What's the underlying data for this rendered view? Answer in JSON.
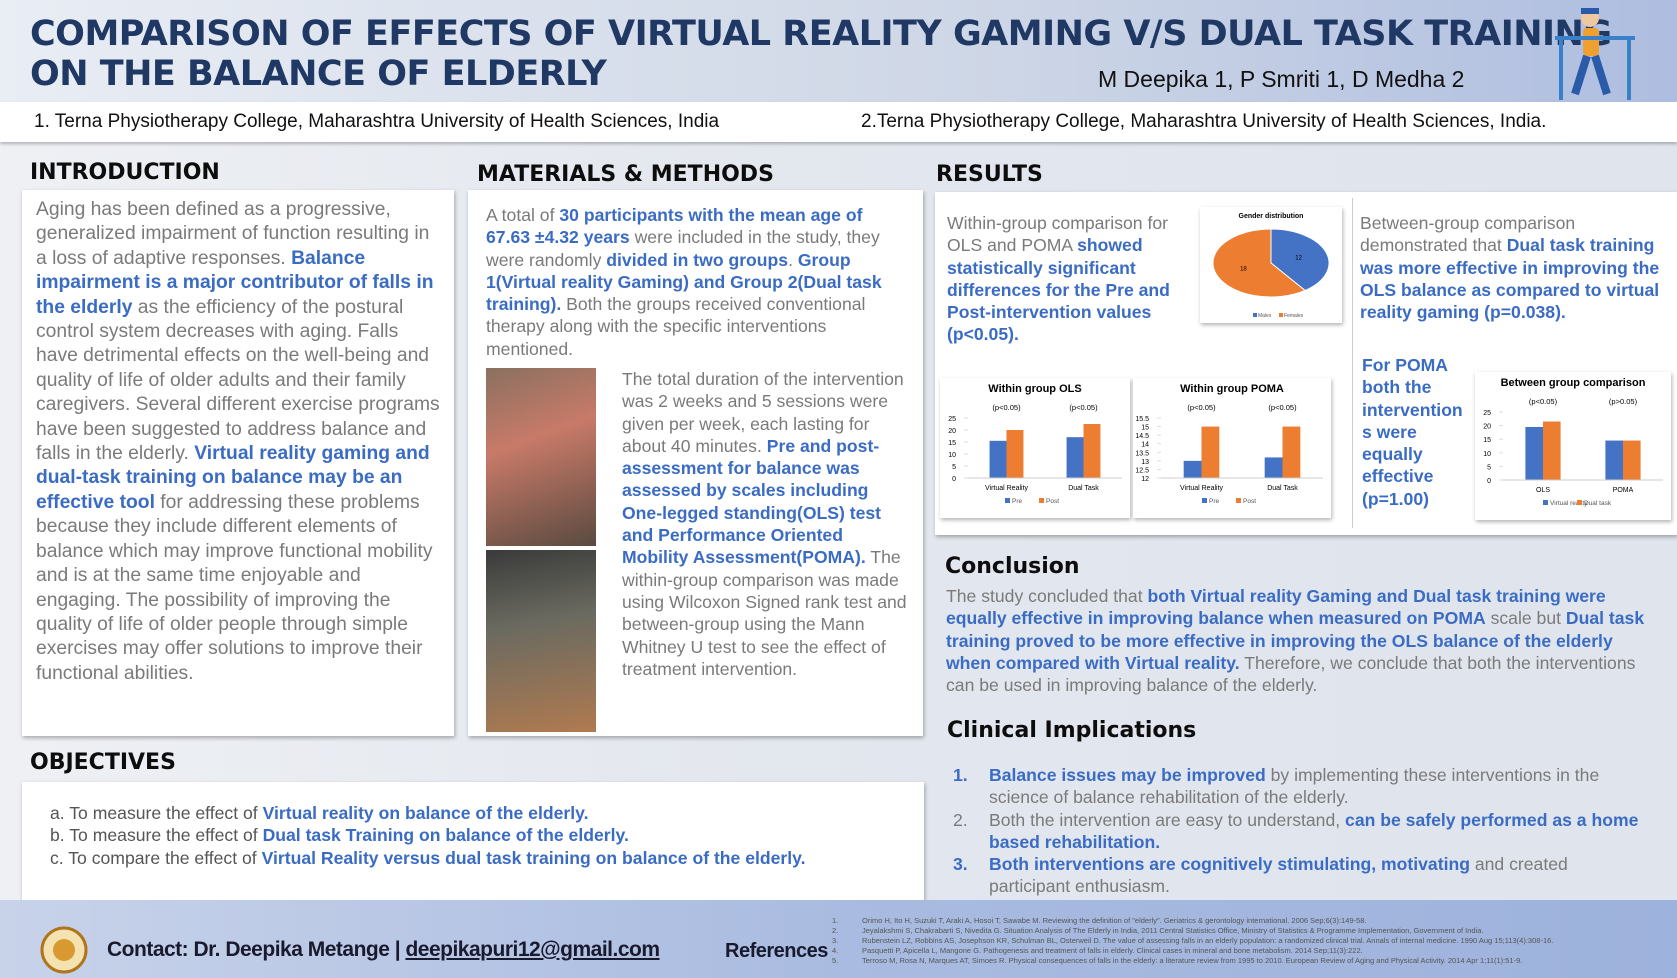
{
  "header": {
    "title_line1": "COMPARISON OF EFFECTS OF VIRTUAL REALITY GAMING V/S DUAL TASK TRAINING",
    "title_line2": "ON THE BALANCE OF ELDERLY",
    "authors": "M Deepika 1, P Smriti 1, D Medha 2"
  },
  "affiliations": [
    "1. Terna Physiotherapy College, Maharashtra University of Health Sciences, India",
    "2.Terna Physiotherapy College, Maharashtra University of Health Sciences, India."
  ],
  "introduction": {
    "heading": "INTRODUCTION",
    "paragraph": [
      "Aging has been defined as a progressive, generalized impairment of function resulting in a loss of adaptive responses. ",
      {
        "text": "Balance impairment is a major contributor of falls in the elderly",
        "strong": true
      },
      " as the efficiency of the postural control system decreases with aging. Falls have detrimental effects on the well-being and quality of life of older adults and their family caregivers. Several different exercise programs have been suggested to address balance and falls in the elderly. ",
      {
        "text": "Virtual reality gaming and dual-task training on balance may be an effective tool",
        "strong": true
      },
      " for addressing these problems because they include different elements of balance which may improve functional mobility and is at the same time enjoyable and engaging. The possibility of improving the quality of life of older people through simple exercises may offer solutions to improve their functional abilities."
    ]
  },
  "objectives": {
    "heading": "OBJECTIVES",
    "items": [
      [
        "a. To measure the effect of ",
        {
          "text": "Virtual reality on balance of the elderly.",
          "strong": true
        }
      ],
      [
        "b. To measure the effect of ",
        {
          "text": "Dual task Training on balance of the elderly.",
          "strong": true
        }
      ],
      [
        "c. To compare the effect of ",
        {
          "text": "Virtual Reality versus dual task training on balance of the elderly.",
          "strong": true
        }
      ]
    ]
  },
  "methods": {
    "heading": "MATERIALS & METHODS",
    "paragraph1": [
      "A total of ",
      {
        "text": "30 participants with the mean age of 67.63 ±4.32 years",
        "strong": true
      },
      " were included in the study, they were randomly ",
      {
        "text": "divided in two groups",
        "strong": true
      },
      ". ",
      {
        "text": "Group 1(Virtual reality Gaming) and Group 2(Dual task training).",
        "strong": true
      },
      " Both the groups received conventional therapy along with the specific interventions mentioned."
    ],
    "paragraph2": [
      "The total duration of the intervention was 2 weeks and 5 sessions were given per week, each lasting for about 40 minutes. ",
      {
        "text": "Pre and post-assessment for balance was assessed by scales including One-legged standing(OLS) test and Performance Oriented Mobility Assessment(POMA).",
        "strong": true
      },
      " The within-group comparison was made using Wilcoxon Signed rank test and between-group using the Mann Whitney U test to see the effect of treatment intervention."
    ]
  },
  "results": {
    "heading": "RESULTS",
    "within_text": [
      "Within-group comparison for OLS and POMA ",
      {
        "text": "showed statistically significant differences for the Pre and Post-intervention values (p<0.05).",
        "strong": true
      }
    ],
    "between_text": [
      "Between-group comparison demonstrated that ",
      {
        "text": "Dual task training was more effective in improving the OLS balance as compared to virtual reality gaming (p=0.038).",
        "strong": true
      }
    ],
    "poma_text": [
      {
        "text": "For POMA both the intervention s were equally effective (p=1.00)",
        "strong": true
      }
    ]
  },
  "figures": [
    {
      "type": "pie",
      "title": "Gender distribution",
      "categories": [
        "Males",
        "Females"
      ],
      "values": [
        12,
        18
      ],
      "colors": [
        "#4472c4",
        "#ed7d31"
      ]
    },
    {
      "type": "bar",
      "title": "Within group OLS",
      "categories": [
        "Virtual Reality",
        "Dual Task"
      ],
      "series": [
        {
          "name": "Pre",
          "color": "#4472c4",
          "values": [
            15.5,
            17
          ]
        },
        {
          "name": "Post",
          "color": "#ed7d31",
          "values": [
            20,
            22.5
          ]
        }
      ],
      "annotations": [
        "(p<0.05)",
        "(p<0.05)"
      ],
      "ylim": [
        0,
        25
      ],
      "yticks": [
        0,
        5,
        10,
        15,
        20,
        25
      ]
    },
    {
      "type": "bar",
      "title": "Within group POMA",
      "categories": [
        "Virtual Reality",
        "Dual Task"
      ],
      "series": [
        {
          "name": "Pre",
          "color": "#4472c4",
          "values": [
            13,
            13.2
          ]
        },
        {
          "name": "Post",
          "color": "#ed7d31",
          "values": [
            15,
            15
          ]
        }
      ],
      "annotations": [
        "(p<0.05)",
        "(p<0.05)"
      ],
      "ylim": [
        12,
        15.5
      ],
      "yticks": [
        12,
        12.5,
        13,
        13.5,
        14,
        14.5,
        15,
        15.5
      ]
    },
    {
      "type": "bar",
      "title": "Between group comparison",
      "categories": [
        "OLS",
        "POMA"
      ],
      "series": [
        {
          "name": "Virtual reality",
          "color": "#4472c4",
          "values": [
            19.5,
            14.5
          ]
        },
        {
          "name": "Dual task",
          "color": "#ed7d31",
          "values": [
            21.5,
            14.5
          ]
        }
      ],
      "annotations": [
        "(p<0.05)",
        "(p>0.05)"
      ],
      "ylim": [
        0,
        25
      ],
      "yticks": [
        0,
        5,
        10,
        15,
        20,
        25
      ]
    }
  ],
  "conclusion": {
    "heading": "Conclusion",
    "paragraph": [
      "The study concluded that ",
      {
        "text": "both Virtual reality Gaming and Dual task training were equally effective in improving balance when measured on POMA",
        "strong": true
      },
      " scale but ",
      {
        "text": "Dual task training proved to be more effective in improving the OLS balance of the elderly when compared with Virtual reality.",
        "strong": true
      },
      " Therefore, we conclude that both the interventions can be used in improving balance of the elderly."
    ]
  },
  "clinical_implications": {
    "heading": "Clinical Implications",
    "items": [
      {
        "number": "1.",
        "text": [
          {
            "text": "Balance issues may be improved",
            "strong": true
          },
          " by implementing these interventions in the science of balance rehabilitation of the elderly."
        ]
      },
      {
        "number": "2.",
        "text": [
          "Both the intervention are easy to understand, ",
          {
            "text": "can be safely performed as a home based rehabilitation.",
            "strong": true
          }
        ]
      },
      {
        "number": "3.",
        "text": [
          {
            "text": "Both interventions are cognitively stimulating, motivating",
            "strong": true
          },
          " and created participant enthusiasm."
        ]
      }
    ]
  },
  "footer": {
    "contact": "Contact: Dr. Deepika Metange |",
    "email": "deepikapuri12@gmail.com",
    "references_heading": "References",
    "references": [
      {
        "number": "1.",
        "text": "Orimo H, Ito H, Suzuki T, Araki A, Hosoi T, Sawabe M. Reviewing the definition of \"elderly\". Geriatrics & gerontology international. 2006 Sep;6(3):149-58."
      },
      {
        "number": "2.",
        "text": "Jeyalakshmi S, Chakrabarti S, Nivedita G. Situation Analysis of The Elderly in India, 2011 Central Statistics Office, Ministry of Statistics & Programme Implementation, Government of India."
      },
      {
        "number": "3.",
        "text": "Rubenstein LZ, Robbins AS, Josephson KR, Schulman BL, Osterweil D. The value of assessing falls in an elderly population: a randomized clinical trial. Annals of internal medicine. 1990 Aug 15;113(4):308-16."
      },
      {
        "number": "4.",
        "text": "Pasquetti P, Apicella L, Mangone G. Pathogenesis and treatment of falls in elderly. Clinical cases in mineral and bone metabolism. 2014 Sep;11(3):222."
      },
      {
        "number": "5.",
        "text": "Terroso M, Rosa N, Marques AT, Simoes R. Physical consequences of falls in the elderly: a literature review from 1995 to 2010. European Review of Aging and Physical Activity. 2014 Apr 1;11(1):51-9."
      }
    ]
  }
}
